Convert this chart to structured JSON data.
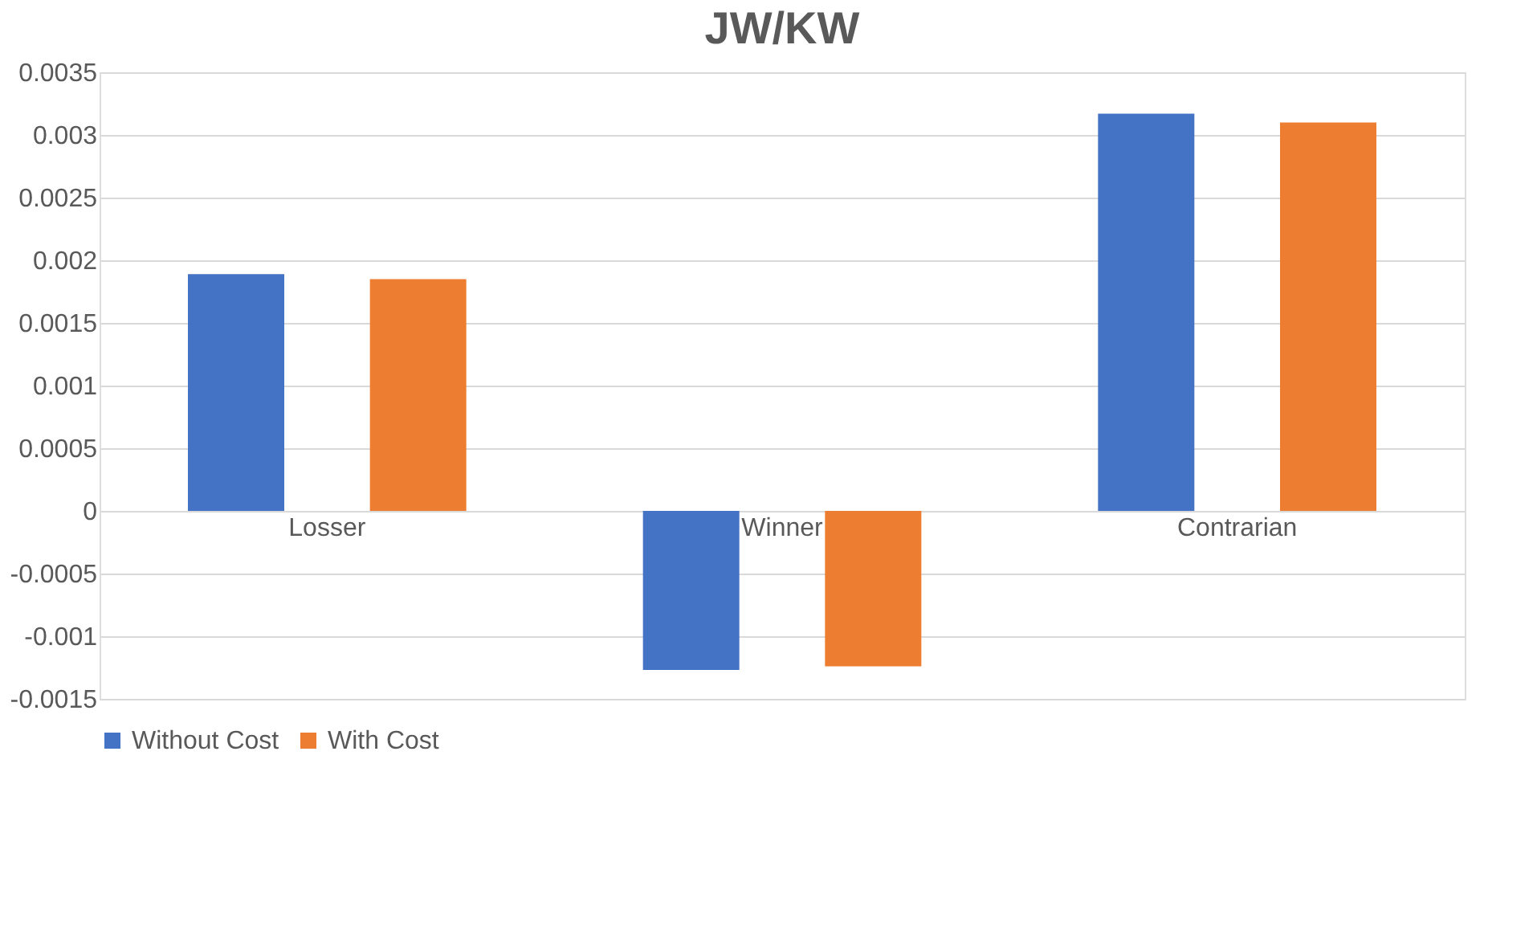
{
  "chart_data": {
    "type": "bar",
    "title": "JW/KW",
    "categories": [
      "Losser",
      "Winner",
      "Contrarian"
    ],
    "series": [
      {
        "name": "Without Cost",
        "color": "#4472c4",
        "values": [
          0.00189,
          -0.00127,
          0.00317
        ]
      },
      {
        "name": "With Cost",
        "color": "#ed7d31",
        "values": [
          0.00185,
          -0.00124,
          0.0031
        ]
      }
    ],
    "ylim": [
      -0.0015,
      0.0035
    ],
    "yticks": [
      -0.0015,
      -0.001,
      -0.0005,
      0,
      0.0005,
      0.001,
      0.0015,
      0.002,
      0.0025,
      0.003,
      0.0035
    ],
    "grid": "y",
    "legend": "bottom"
  }
}
